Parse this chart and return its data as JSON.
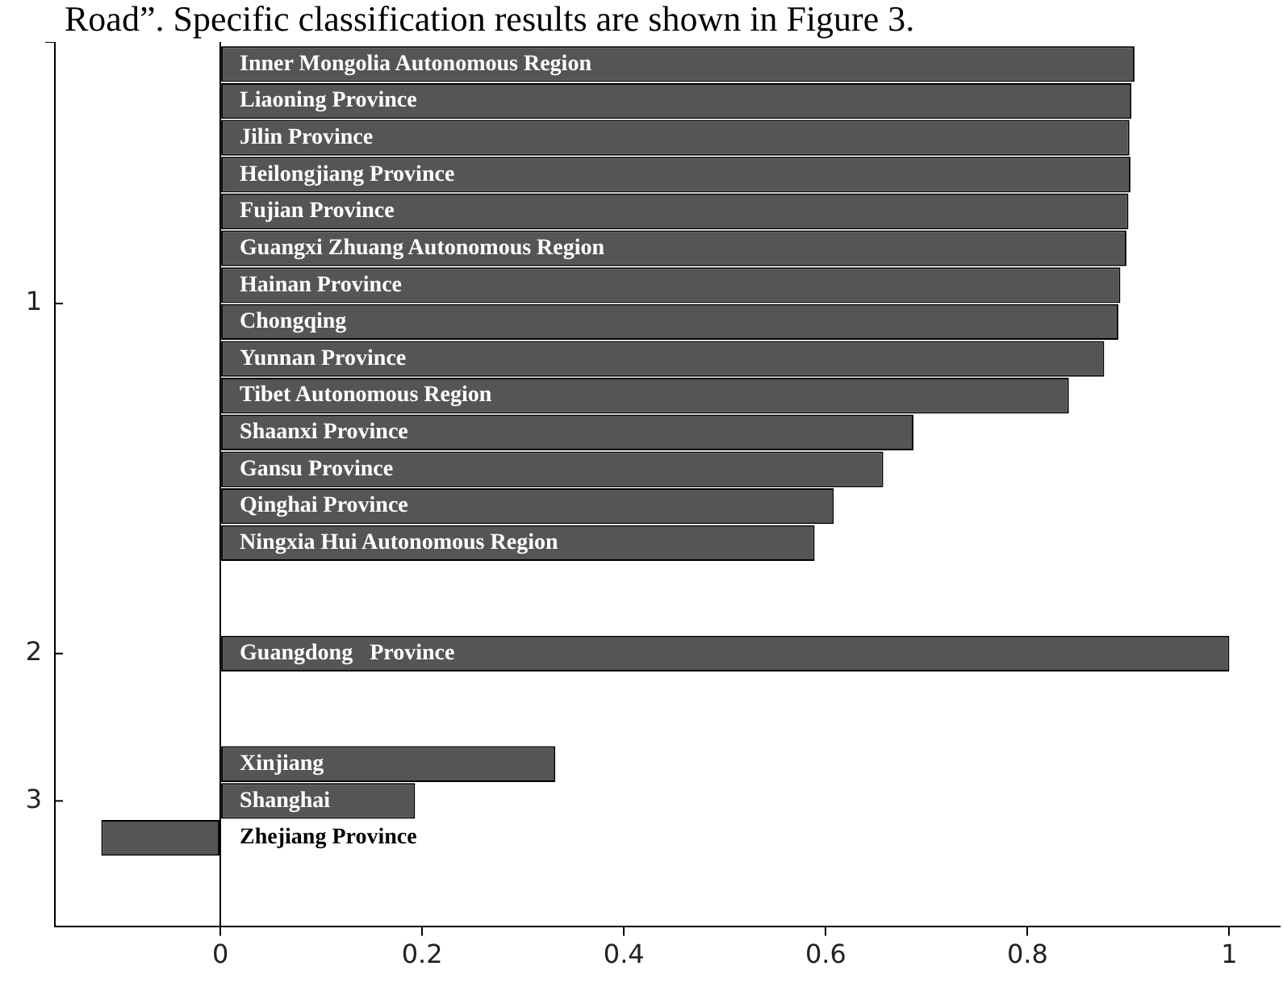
{
  "chart_data": {
    "type": "bar",
    "orientation": "horizontal",
    "annotations": [
      "Road”. Specific classification results are shown in Figure 3.",
      "1",
      "2",
      "3"
    ],
    "categories": [
      "Inner Mongolia Autonomous Region",
      "Liaoning Province",
      "Jilin Province",
      "Heilongjiang Province",
      "Fujian Province",
      "Guangxi Zhuang Autonomous Region",
      "Hainan Province",
      "Chongqing",
      "Yunnan Province",
      "Tibet Autonomous Region",
      "Shaanxi Province",
      "Gansu Province",
      "Qinghai Province",
      "Ningxia Hui Autonomous Region",
      null,
      null,
      "Guangdong   Province",
      null,
      null,
      "Xinjiang",
      "Shanghai",
      "Zhejiang Province"
    ],
    "values": [
      0.906,
      0.903,
      0.901,
      0.902,
      0.9,
      0.898,
      0.892,
      0.89,
      0.876,
      0.841,
      0.687,
      0.657,
      0.608,
      0.589,
      null,
      null,
      1.0,
      null,
      null,
      0.332,
      0.193,
      -0.118
    ],
    "color": "#555555",
    "xlim": [
      -0.164,
      1.05
    ],
    "xticks": [
      0,
      0.2,
      0.4,
      0.6,
      0.8,
      1
    ],
    "grid": false,
    "legend": false
  }
}
